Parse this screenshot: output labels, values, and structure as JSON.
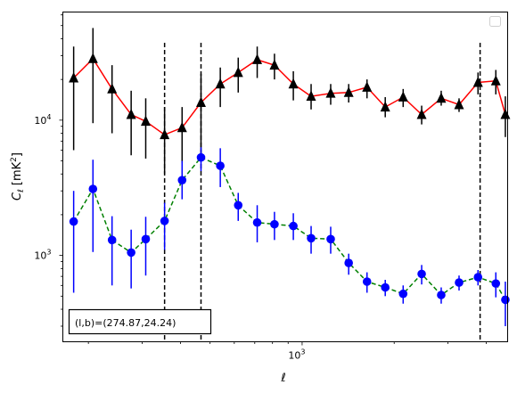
{
  "chart_data": {
    "type": "scatter",
    "xscale": "log",
    "yscale": "log",
    "xlim": [
      165,
      4700
    ],
    "ylim": [
      230,
      63000
    ],
    "xlabel": "ℓ",
    "ylabel_main": "C",
    "ylabel_sub": "ℓ",
    "ylabel_units": "[mK",
    "ylabel_units_sup": "2",
    "ylabel_units_end": "]",
    "xticks": [
      {
        "value": 1000,
        "base": "10",
        "exp": "3"
      }
    ],
    "yticks": [
      {
        "value": 1000,
        "base": "10",
        "exp": "3"
      },
      {
        "value": 10000,
        "base": "10",
        "exp": "4"
      }
    ],
    "vlines": [
      355,
      467,
      3820
    ],
    "annotation": "(l,b)=(274.87,24.24)",
    "legend_placement": "upper-right",
    "series": [
      {
        "color": "#ff0000",
        "marker": "triangle",
        "marker_color": "#000000",
        "errorbar_color": "#000000",
        "linestyle": "solid",
        "points": [
          {
            "x": 179,
            "y": 20500,
            "lo": 6000,
            "hi": 35000
          },
          {
            "x": 207,
            "y": 28500,
            "lo": 9500,
            "hi": 48000
          },
          {
            "x": 239,
            "y": 17000,
            "lo": 8000,
            "hi": 25500
          },
          {
            "x": 276,
            "y": 11000,
            "lo": 5500,
            "hi": 16500
          },
          {
            "x": 308,
            "y": 9800,
            "lo": 5200,
            "hi": 14500
          },
          {
            "x": 355,
            "y": 7800,
            "lo": 4000,
            "hi": 12500
          },
          {
            "x": 405,
            "y": 8800,
            "lo": 4800,
            "hi": 12500
          },
          {
            "x": 467,
            "y": 13500,
            "lo": 5000,
            "hi": 22000
          },
          {
            "x": 540,
            "y": 18500,
            "lo": 12500,
            "hi": 24500
          },
          {
            "x": 618,
            "y": 22500,
            "lo": 16000,
            "hi": 29000
          },
          {
            "x": 713,
            "y": 28000,
            "lo": 20500,
            "hi": 35000
          },
          {
            "x": 812,
            "y": 25500,
            "lo": 20000,
            "hi": 31000
          },
          {
            "x": 936,
            "y": 18500,
            "lo": 14000,
            "hi": 23000
          },
          {
            "x": 1070,
            "y": 15000,
            "lo": 12000,
            "hi": 18500
          },
          {
            "x": 1240,
            "y": 15800,
            "lo": 13000,
            "hi": 18500
          },
          {
            "x": 1420,
            "y": 16000,
            "lo": 13500,
            "hi": 18500
          },
          {
            "x": 1630,
            "y": 17500,
            "lo": 14500,
            "hi": 20000
          },
          {
            "x": 1870,
            "y": 12500,
            "lo": 10500,
            "hi": 14800
          },
          {
            "x": 2140,
            "y": 14800,
            "lo": 12500,
            "hi": 17000
          },
          {
            "x": 2460,
            "y": 11000,
            "lo": 9300,
            "hi": 12800
          },
          {
            "x": 2850,
            "y": 14500,
            "lo": 12800,
            "hi": 16500
          },
          {
            "x": 3260,
            "y": 13000,
            "lo": 11500,
            "hi": 14500
          },
          {
            "x": 3760,
            "y": 19000,
            "lo": 15500,
            "hi": 22500
          },
          {
            "x": 4300,
            "y": 19500,
            "lo": 15500,
            "hi": 23500
          },
          {
            "x": 4620,
            "y": 11000,
            "lo": 7500,
            "hi": 15000
          }
        ]
      },
      {
        "color": "#008000",
        "marker": "circle",
        "marker_color": "#0000ff",
        "errorbar_color": "#0000ff",
        "linestyle": "dashed",
        "points": [
          {
            "x": 179,
            "y": 1780,
            "lo": 530,
            "hi": 3000
          },
          {
            "x": 207,
            "y": 3100,
            "lo": 1060,
            "hi": 5100
          },
          {
            "x": 239,
            "y": 1300,
            "lo": 600,
            "hi": 1950
          },
          {
            "x": 276,
            "y": 1050,
            "lo": 570,
            "hi": 1550
          },
          {
            "x": 308,
            "y": 1320,
            "lo": 710,
            "hi": 1930
          },
          {
            "x": 355,
            "y": 1800,
            "lo": 1100,
            "hi": 2450
          },
          {
            "x": 405,
            "y": 3600,
            "lo": 2600,
            "hi": 5000
          },
          {
            "x": 467,
            "y": 5300,
            "lo": 4200,
            "hi": 6300
          },
          {
            "x": 540,
            "y": 4600,
            "lo": 3200,
            "hi": 6200
          },
          {
            "x": 618,
            "y": 2350,
            "lo": 1800,
            "hi": 2900
          },
          {
            "x": 713,
            "y": 1750,
            "lo": 1250,
            "hi": 2350
          },
          {
            "x": 812,
            "y": 1700,
            "lo": 1300,
            "hi": 2100
          },
          {
            "x": 936,
            "y": 1650,
            "lo": 1300,
            "hi": 2050
          },
          {
            "x": 1070,
            "y": 1340,
            "lo": 1030,
            "hi": 1650
          },
          {
            "x": 1240,
            "y": 1320,
            "lo": 1030,
            "hi": 1630
          },
          {
            "x": 1420,
            "y": 880,
            "lo": 720,
            "hi": 1030
          },
          {
            "x": 1630,
            "y": 640,
            "lo": 530,
            "hi": 750
          },
          {
            "x": 1870,
            "y": 580,
            "lo": 500,
            "hi": 660
          },
          {
            "x": 2140,
            "y": 520,
            "lo": 440,
            "hi": 600
          },
          {
            "x": 2460,
            "y": 730,
            "lo": 610,
            "hi": 850
          },
          {
            "x": 2850,
            "y": 510,
            "lo": 440,
            "hi": 580
          },
          {
            "x": 3260,
            "y": 630,
            "lo": 550,
            "hi": 710
          },
          {
            "x": 3760,
            "y": 690,
            "lo": 600,
            "hi": 780
          },
          {
            "x": 4300,
            "y": 620,
            "lo": 490,
            "hi": 750
          },
          {
            "x": 4620,
            "y": 470,
            "lo": 300,
            "hi": 640
          }
        ]
      }
    ]
  }
}
